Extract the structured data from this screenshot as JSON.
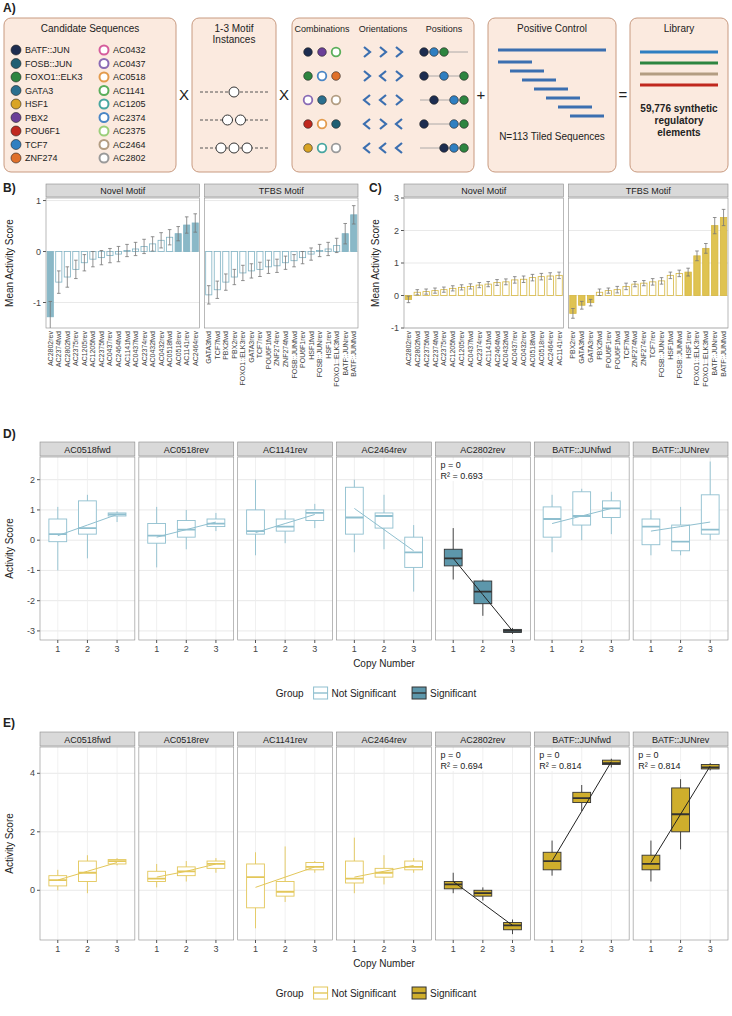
{
  "diagram": {
    "panel": "A)",
    "candidates": {
      "title": "Candidate Sequences",
      "tf_motifs": [
        {
          "label": "BATF::JUN",
          "color": "#1d2d50"
        },
        {
          "label": "FOSB::JUN",
          "color": "#1f5f73"
        },
        {
          "label": "FOXO1::ELK3",
          "color": "#2e8540"
        },
        {
          "label": "GATA3",
          "color": "#2b6f8e"
        },
        {
          "label": "HSF1",
          "color": "#d9a425"
        },
        {
          "label": "PBX2",
          "color": "#6b3f98"
        },
        {
          "label": "POU6F1",
          "color": "#c0281e"
        },
        {
          "label": "TCF7",
          "color": "#2f7fc1"
        },
        {
          "label": "ZNF274",
          "color": "#e0702a"
        }
      ],
      "novel_motifs": [
        {
          "label": "AC0432",
          "color": "#d55d9c"
        },
        {
          "label": "AC0437",
          "color": "#8a6bb5"
        },
        {
          "label": "AC0518",
          "color": "#e39b4d"
        },
        {
          "label": "AC1141",
          "color": "#5aae5a"
        },
        {
          "label": "AC1205",
          "color": "#47a6a0"
        },
        {
          "label": "AC2374",
          "color": "#4a86c5"
        },
        {
          "label": "AC2375",
          "color": "#9bcf7a"
        },
        {
          "label": "AC2464",
          "color": "#b39d82"
        },
        {
          "label": "AC2802",
          "color": "#9a9a9a"
        }
      ]
    },
    "instances": {
      "title": "1-3 Motif Instances"
    },
    "arrangements": {
      "titles": [
        "Combinations",
        "Orientations",
        "Positions"
      ]
    },
    "control": {
      "title": "Positive Control",
      "note": "N=113 Tiled Sequences"
    },
    "library": {
      "title": "Library",
      "note": "59,776 synthetic regulatory elements"
    },
    "operators": [
      "X",
      "X",
      "+",
      "="
    ]
  },
  "chart_data": [
    {
      "type": "bar",
      "panel": "B)",
      "y_label": "Mean Activity Score",
      "ylim": [
        -1.5,
        1.05
      ],
      "yticks": [
        -1,
        0,
        1
      ],
      "grid": true,
      "color": "#7fb2c3",
      "facets": [
        {
          "title": "Novel Motif",
          "categories": [
            "AC2802rev",
            "AC2374fwd",
            "AC2802fwd",
            "AC2375rev",
            "AC1205rev",
            "AC1205fwd",
            "AC2375fwd",
            "AC0437rev",
            "AC2464fwd",
            "AC1141fwd",
            "AC0437fwd",
            "AC2374rev",
            "AC0432fwd",
            "AC0432rev",
            "AC0518fwd",
            "AC0518rev",
            "AC1141rev",
            "AC2464rev"
          ],
          "values": [
            -1.28,
            -0.6,
            -0.5,
            -0.35,
            -0.22,
            -0.15,
            -0.12,
            -0.08,
            -0.05,
            0.02,
            0.05,
            0.1,
            0.15,
            0.22,
            0.28,
            0.35,
            0.52,
            0.56
          ],
          "errors": [
            0.3,
            0.22,
            0.2,
            0.18,
            0.16,
            0.15,
            0.14,
            0.14,
            0.15,
            0.12,
            0.13,
            0.14,
            0.14,
            0.15,
            0.15,
            0.14,
            0.16,
            0.18
          ],
          "colors": [
            "#8ab8c7",
            "#ffffff",
            "#ffffff",
            "#ffffff",
            "#ffffff",
            "#ffffff",
            "#ffffff",
            "#ffffff",
            "#ffffff",
            "#ffffff",
            "#ffffff",
            "#ffffff",
            "#ffffff",
            "#ffffff",
            "#ffffff",
            "#8ab8c7",
            "#8ab8c7",
            "#8ab8c7"
          ]
        },
        {
          "title": "TFBS Motif",
          "categories": [
            "GATA3fwd",
            "TCF7fwd",
            "PBX2fwd",
            "PBX2rev",
            "FOXO1::ELK3rev",
            "GATA3rev",
            "TCF7rev",
            "POU6F1fwd",
            "ZNF274rev",
            "ZNF274fwd",
            "FOSB::JUNfwd",
            "POU6F1rev",
            "HSF1fwd",
            "FOSB::JUNrev",
            "HSF1rev",
            "FOXO1::ELK3fwd",
            "BATF::JUNrev",
            "BATF::JUNfwd"
          ],
          "values": [
            -0.85,
            -0.75,
            -0.6,
            -0.5,
            -0.42,
            -0.38,
            -0.35,
            -0.3,
            -0.28,
            -0.22,
            -0.18,
            -0.12,
            -0.05,
            0.02,
            0.05,
            0.12,
            0.35,
            0.72
          ],
          "errors": [
            0.18,
            0.17,
            0.16,
            0.15,
            0.15,
            0.14,
            0.14,
            0.13,
            0.13,
            0.13,
            0.12,
            0.12,
            0.12,
            0.12,
            0.13,
            0.14,
            0.2,
            0.18
          ],
          "colors": [
            "#ffffff",
            "#ffffff",
            "#ffffff",
            "#ffffff",
            "#ffffff",
            "#ffffff",
            "#ffffff",
            "#ffffff",
            "#ffffff",
            "#ffffff",
            "#ffffff",
            "#ffffff",
            "#ffffff",
            "#ffffff",
            "#ffffff",
            "#ffffff",
            "#8ab8c7",
            "#8ab8c7"
          ]
        }
      ]
    },
    {
      "type": "bar",
      "panel": "C)",
      "y_label": "Mean Activity Score",
      "ylim": [
        -1,
        3
      ],
      "yticks": [
        -1,
        0,
        1,
        2,
        3
      ],
      "grid": true,
      "color": "#d6b740",
      "facets": [
        {
          "title": "Novel Motif",
          "categories": [
            "AC2802rev",
            "AC2802fwd",
            "AC2375fwd",
            "AC2374fwd",
            "AC2375rev",
            "AC1205fwd",
            "AC1205rev",
            "AC0437fwd",
            "AC2374rev",
            "AC1141fwd",
            "AC2464fwd",
            "AC0432fwd",
            "AC0437rev",
            "AC0432rev",
            "AC0518fwd",
            "AC0518rev",
            "AC2464rev",
            "AC1141rev"
          ],
          "values": [
            -0.12,
            0.1,
            0.12,
            0.15,
            0.18,
            0.22,
            0.25,
            0.28,
            0.32,
            0.35,
            0.4,
            0.42,
            0.48,
            0.5,
            0.55,
            0.58,
            0.6,
            0.62
          ],
          "errors": [
            0.1,
            0.08,
            0.08,
            0.08,
            0.08,
            0.08,
            0.08,
            0.08,
            0.08,
            0.08,
            0.09,
            0.09,
            0.1,
            0.1,
            0.1,
            0.1,
            0.1,
            0.1
          ],
          "colors": [
            "#dfc352",
            "#ffffff",
            "#ffffff",
            "#ffffff",
            "#ffffff",
            "#ffffff",
            "#ffffff",
            "#ffffff",
            "#ffffff",
            "#ffffff",
            "#ffffff",
            "#ffffff",
            "#ffffff",
            "#ffffff",
            "#ffffff",
            "#ffffff",
            "#ffffff",
            "#ffffff"
          ]
        },
        {
          "title": "TFBS Motif",
          "categories": [
            "PBX2rev",
            "GATA3fwd",
            "GATA3rev",
            "PBX2fwd",
            "POU6F1rev",
            "POU6F1fwd",
            "TCF7fwd",
            "ZNF274fwd",
            "ZNF274rev",
            "TCF7rev",
            "FOSB::JUNrev",
            "HSF1fwd",
            "FOSB::JUNfwd",
            "HSF1rev",
            "FOXO1::ELK3rev",
            "FOXO1::ELK3fwd",
            "BATF::JUNrev",
            "BATF::JUNfwd"
          ],
          "values": [
            -0.55,
            -0.3,
            -0.22,
            0.1,
            0.15,
            0.18,
            0.28,
            0.35,
            0.38,
            0.42,
            0.45,
            0.62,
            0.68,
            0.72,
            1.22,
            1.45,
            2.15,
            2.4
          ],
          "errors": [
            0.15,
            0.12,
            0.1,
            0.1,
            0.08,
            0.1,
            0.1,
            0.08,
            0.08,
            0.1,
            0.1,
            0.1,
            0.1,
            0.12,
            0.15,
            0.15,
            0.25,
            0.25
          ],
          "colors": [
            "#dfc352",
            "#dfc352",
            "#dfc352",
            "#ffffff",
            "#ffffff",
            "#ffffff",
            "#ffffff",
            "#ffffff",
            "#ffffff",
            "#ffffff",
            "#ffffff",
            "#ffffff",
            "#ffffff",
            "#dfc352",
            "#dfc352",
            "#dfc352",
            "#dfc352",
            "#dfc352"
          ]
        }
      ]
    },
    {
      "type": "box",
      "panel": "D)",
      "x_label": "Copy Number",
      "y_label": "Activity Score",
      "x": [
        1,
        2,
        3
      ],
      "xlim": [
        0.4,
        3.6
      ],
      "xticks": [
        1,
        2,
        3
      ],
      "ylim": [
        -3.3,
        2.75
      ],
      "yticks": [
        -3,
        -2,
        -1,
        0,
        1,
        2
      ],
      "grid": true,
      "legend": "bottom",
      "legend_title": "Group",
      "groups": [
        {
          "name": "Not Significant",
          "color": "#8fbfcf"
        },
        {
          "name": "Significant",
          "color": "#5d97ab"
        }
      ],
      "facets": [
        {
          "title": "AC0518fwd",
          "group": "Not Significant",
          "min": [
            -1.0,
            -0.6,
            0.6
          ],
          "q1": [
            -0.05,
            0.2,
            0.8
          ],
          "median": [
            0.2,
            0.4,
            0.85
          ],
          "q3": [
            0.7,
            1.3,
            0.9
          ],
          "max": [
            1.1,
            1.5,
            0.95
          ],
          "fit": [
            0.15,
            0.5,
            0.85
          ],
          "annotations": []
        },
        {
          "title": "AC0518rev",
          "group": "Not Significant",
          "min": [
            -0.9,
            -0.3,
            0.3
          ],
          "q1": [
            -0.1,
            0.1,
            0.45
          ],
          "median": [
            0.15,
            0.35,
            0.55
          ],
          "q3": [
            0.55,
            0.65,
            0.7
          ],
          "max": [
            1.1,
            1.0,
            0.9
          ],
          "fit": [
            0.1,
            0.35,
            0.6
          ],
          "annotations": []
        },
        {
          "title": "AC1141rev",
          "group": "Not Significant",
          "min": [
            -0.5,
            -0.1,
            0.4
          ],
          "q1": [
            0.2,
            0.3,
            0.65
          ],
          "median": [
            0.3,
            0.45,
            0.9
          ],
          "q3": [
            1.0,
            0.7,
            1.0
          ],
          "max": [
            2.0,
            1.0,
            1.2
          ],
          "fit": [
            0.25,
            0.55,
            0.85
          ],
          "annotations": []
        },
        {
          "title": "AC2464rev",
          "group": "Not Significant",
          "min": [
            -0.4,
            -0.3,
            -1.7
          ],
          "q1": [
            0.2,
            0.4,
            -0.9
          ],
          "median": [
            0.75,
            0.8,
            -0.4
          ],
          "q3": [
            1.75,
            0.9,
            0.1
          ],
          "max": [
            2.0,
            1.5,
            0.5
          ],
          "fit": [
            1.05,
            0.35,
            -0.35
          ],
          "annotations": []
        },
        {
          "title": "AC2802rev",
          "group": "Significant",
          "min": [
            -1.3,
            -2.5,
            -3.1
          ],
          "q1": [
            -0.85,
            -2.1,
            -3.05
          ],
          "median": [
            -0.6,
            -1.7,
            -3.0
          ],
          "q3": [
            -0.3,
            -1.35,
            -2.95
          ],
          "max": [
            0.4,
            -1.3,
            -2.9
          ],
          "fit": [
            -0.6,
            -1.8,
            -3.0
          ],
          "annotations": [
            "p = 0",
            "R² = 0.693"
          ]
        },
        {
          "title": "BATF::JUNfwd",
          "group": "Not Significant",
          "min": [
            -0.4,
            0.0,
            0.2
          ],
          "q1": [
            0.1,
            0.5,
            0.75
          ],
          "median": [
            0.7,
            0.8,
            1.05
          ],
          "q3": [
            1.1,
            1.6,
            1.3
          ],
          "max": [
            1.5,
            1.7,
            1.6
          ],
          "fit": [
            0.55,
            0.8,
            1.05
          ],
          "annotations": []
        },
        {
          "title": "BATF::JUNrev",
          "group": "Not Significant",
          "min": [
            -0.5,
            -0.5,
            0.0
          ],
          "q1": [
            -0.15,
            -0.35,
            0.2
          ],
          "median": [
            0.45,
            -0.05,
            0.35
          ],
          "q3": [
            0.7,
            0.5,
            1.5
          ],
          "max": [
            1.0,
            1.1,
            2.6
          ],
          "fit": [
            0.3,
            0.45,
            0.6
          ],
          "annotations": []
        }
      ]
    },
    {
      "type": "box",
      "panel": "E)",
      "x_label": "Copy Number",
      "y_label": "Activity Score",
      "x": [
        1,
        2,
        3
      ],
      "xlim": [
        0.4,
        3.6
      ],
      "xticks": [
        1,
        2,
        3
      ],
      "ylim": [
        -1.7,
        4.9
      ],
      "yticks": [
        0,
        2,
        4
      ],
      "grid": true,
      "legend": "bottom",
      "legend_title": "Group",
      "groups": [
        {
          "name": "Not Significant",
          "color": "#e3c75a"
        },
        {
          "name": "Significant",
          "color": "#cfae2c"
        }
      ],
      "facets": [
        {
          "title": "AC0518fwd",
          "group": "Not Significant",
          "min": [
            0.0,
            -0.1,
            0.85
          ],
          "q1": [
            0.15,
            0.3,
            0.9
          ],
          "median": [
            0.35,
            0.6,
            1.0
          ],
          "q3": [
            0.5,
            1.0,
            1.05
          ],
          "max": [
            0.7,
            1.2,
            1.1
          ],
          "fit": [
            0.35,
            0.65,
            0.95
          ],
          "annotations": []
        },
        {
          "title": "AC0518rev",
          "group": "Not Significant",
          "min": [
            0.1,
            0.3,
            0.6
          ],
          "q1": [
            0.3,
            0.5,
            0.75
          ],
          "median": [
            0.4,
            0.65,
            0.9
          ],
          "q3": [
            0.65,
            0.8,
            1.0
          ],
          "max": [
            0.9,
            1.0,
            1.1
          ],
          "fit": [
            0.45,
            0.65,
            0.9
          ],
          "annotations": []
        },
        {
          "title": "AC1141rev",
          "group": "Not Significant",
          "min": [
            -1.3,
            -0.4,
            0.6
          ],
          "q1": [
            -0.6,
            -0.2,
            0.7
          ],
          "median": [
            0.45,
            -0.05,
            0.8
          ],
          "q3": [
            0.9,
            0.3,
            0.95
          ],
          "max": [
            1.3,
            1.5,
            1.0
          ],
          "fit": [
            0.1,
            0.45,
            0.8
          ],
          "annotations": []
        },
        {
          "title": "AC2464rev",
          "group": "Not Significant",
          "min": [
            -0.1,
            0.2,
            0.6
          ],
          "q1": [
            0.25,
            0.45,
            0.7
          ],
          "median": [
            0.4,
            0.6,
            0.8
          ],
          "q3": [
            1.0,
            0.75,
            1.0
          ],
          "max": [
            1.8,
            1.2,
            1.1
          ],
          "fit": [
            0.45,
            0.65,
            0.85
          ],
          "annotations": []
        },
        {
          "title": "AC2802rev",
          "group": "Significant",
          "min": [
            -0.1,
            -0.35,
            -1.5
          ],
          "q1": [
            0.05,
            -0.2,
            -1.35
          ],
          "median": [
            0.2,
            -0.1,
            -1.2
          ],
          "q3": [
            0.3,
            0.0,
            -1.1
          ],
          "max": [
            0.6,
            0.1,
            -1.0
          ],
          "fit": [
            0.3,
            -0.45,
            -1.2
          ],
          "annotations": [
            "p = 0",
            "R² = 0.694"
          ]
        },
        {
          "title": "BATF::JUNfwd",
          "group": "Significant",
          "min": [
            0.5,
            2.7,
            4.2
          ],
          "q1": [
            0.7,
            3.0,
            4.3
          ],
          "median": [
            1.0,
            3.15,
            4.35
          ],
          "q3": [
            1.3,
            3.35,
            4.45
          ],
          "max": [
            1.7,
            3.6,
            4.5
          ],
          "fit": [
            1.0,
            2.7,
            4.4
          ],
          "annotations": [
            "p = 0",
            "R² = 0.814"
          ]
        },
        {
          "title": "BATF::JUNrev",
          "group": "Significant",
          "min": [
            0.3,
            1.4,
            4.1
          ],
          "q1": [
            0.7,
            2.0,
            4.15
          ],
          "median": [
            0.9,
            2.6,
            4.2
          ],
          "q3": [
            1.2,
            3.5,
            4.3
          ],
          "max": [
            1.7,
            3.8,
            4.35
          ],
          "fit": [
            0.95,
            2.6,
            4.25
          ],
          "annotations": [
            "p = 0",
            "R² = 0.814"
          ]
        }
      ]
    }
  ]
}
